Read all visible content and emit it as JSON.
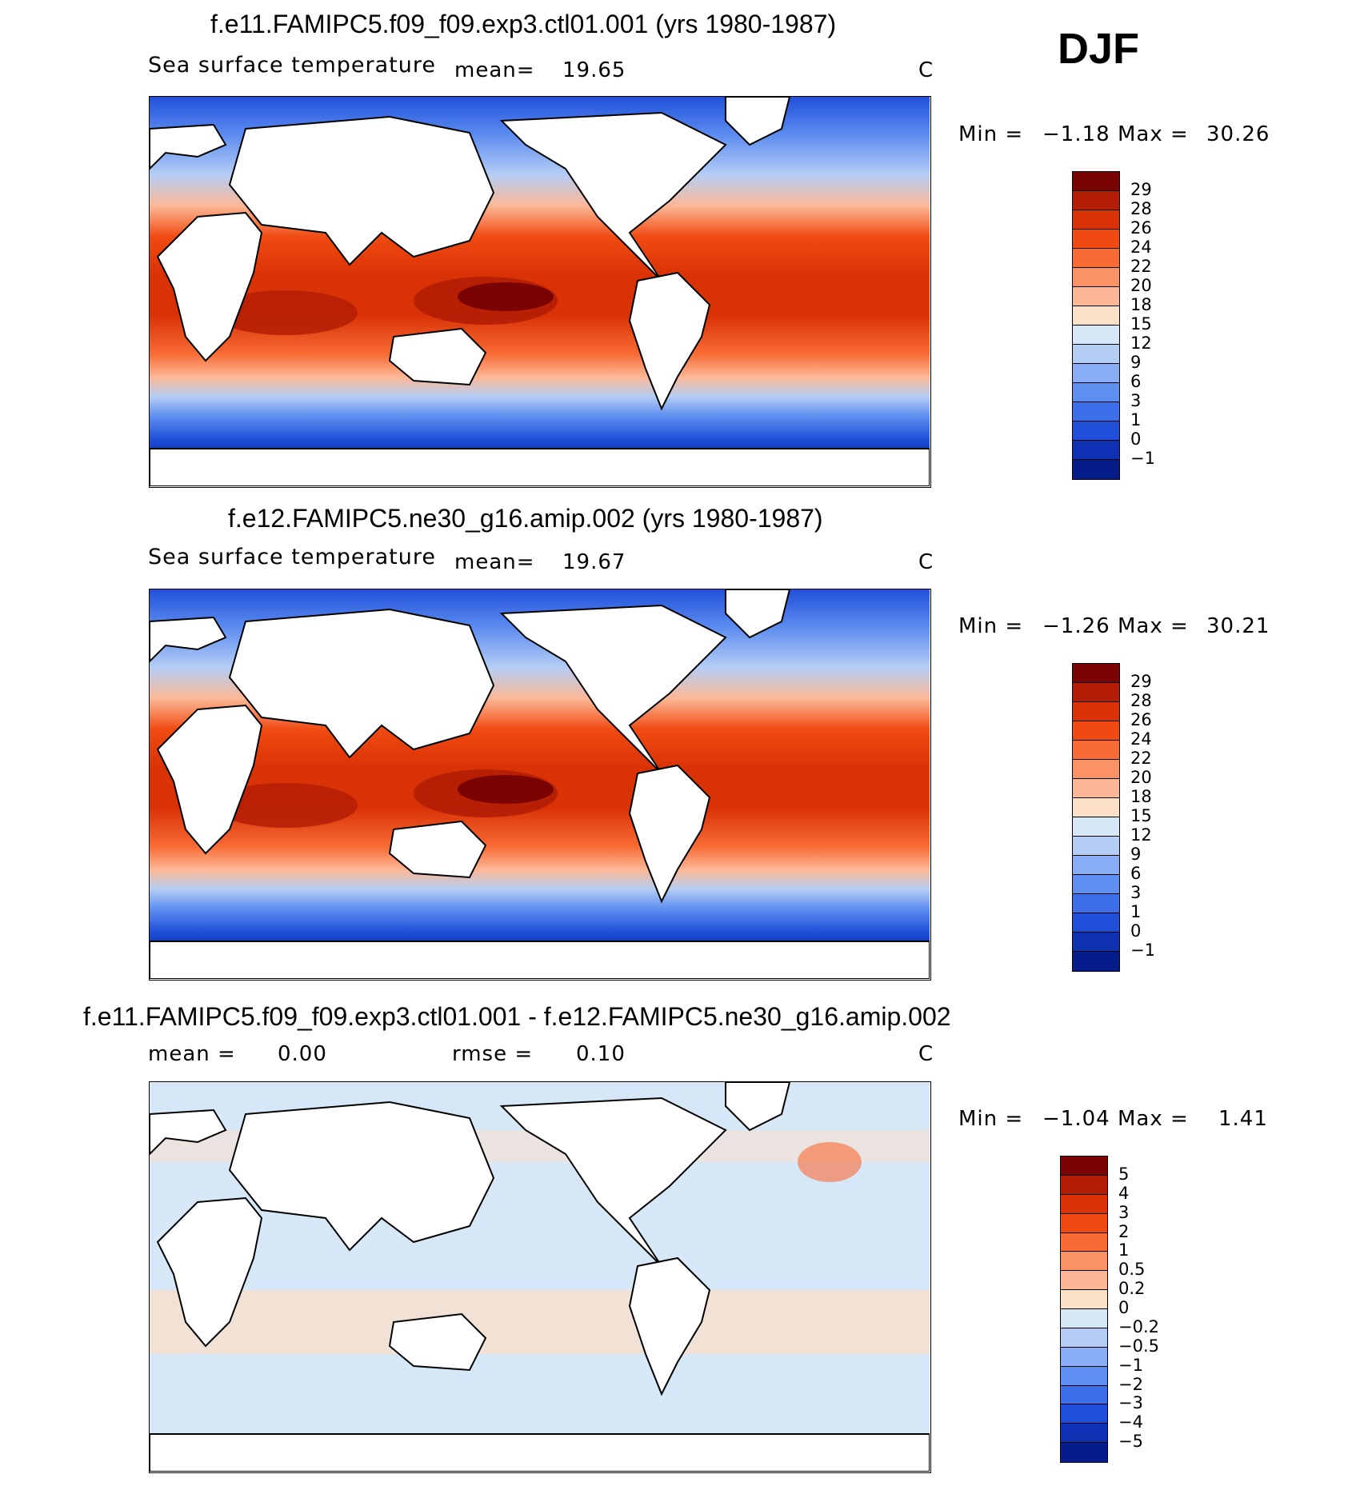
{
  "season": "DJF",
  "panels": [
    {
      "title": "f.e11.FAMIPC5.f09_f09.exp3.ctl01.001 (yrs 1980-1987)",
      "variable": "Sea surface temperature",
      "stat1_label": "mean=",
      "stat1_value": "19.65",
      "units": "C",
      "min_label": "Min =",
      "min_value": "−1.18",
      "max_label": "Max =",
      "max_value": "30.26",
      "colorbar_labels": [
        "29",
        "28",
        "26",
        "24",
        "22",
        "20",
        "18",
        "15",
        "12",
        "9",
        "6",
        "3",
        "1",
        "0",
        "−1"
      ]
    },
    {
      "title": "f.e12.FAMIPC5.ne30_g16.amip.002 (yrs 1980-1987)",
      "variable": "Sea surface temperature",
      "stat1_label": "mean=",
      "stat1_value": "19.67",
      "units": "C",
      "min_label": "Min =",
      "min_value": "−1.26",
      "max_label": "Max =",
      "max_value": "30.21",
      "colorbar_labels": [
        "29",
        "28",
        "26",
        "24",
        "22",
        "20",
        "18",
        "15",
        "12",
        "9",
        "6",
        "3",
        "1",
        "0",
        "−1"
      ]
    },
    {
      "title": "f.e11.FAMIPC5.f09_f09.exp3.ctl01.001 - f.e12.FAMIPC5.ne30_g16.amip.002",
      "stat1_label": "mean =",
      "stat1_value": "0.00",
      "stat2_label": "rmse =",
      "stat2_value": "0.10",
      "units": "C",
      "min_label": "Min =",
      "min_value": "−1.04",
      "max_label": "Max =",
      "max_value": "1.41",
      "colorbar_labels": [
        "5",
        "4",
        "3",
        "2",
        "1",
        "0.5",
        "0.2",
        "0",
        "−0.2",
        "−0.5",
        "−1",
        "−2",
        "−3",
        "−4",
        "−5"
      ]
    }
  ],
  "colors": {
    "sst_scale": [
      "#7a0403",
      "#b31d05",
      "#d93206",
      "#f04a12",
      "#f86b35",
      "#fb9266",
      "#fcb896",
      "#fde0c8",
      "#d6e7f7",
      "#b4cdf5",
      "#8aaef5",
      "#5e8ef0",
      "#3c6fe9",
      "#1f4fd9",
      "#0f32b5",
      "#061c8a"
    ],
    "diff_scale": [
      "#7a0403",
      "#b31d05",
      "#d93206",
      "#f04a12",
      "#f86b35",
      "#fb9266",
      "#fcb896",
      "#fde0c8",
      "#d6e7f7",
      "#b4cdf5",
      "#8aaef5",
      "#5e8ef0",
      "#3c6fe9",
      "#1f4fd9",
      "#0f32b5",
      "#061c8a"
    ]
  }
}
